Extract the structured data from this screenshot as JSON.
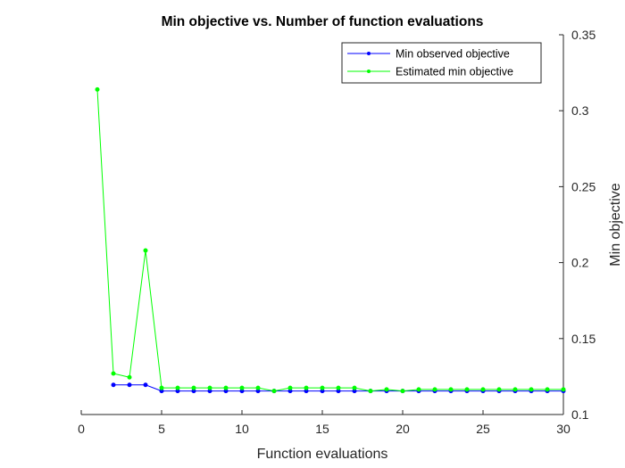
{
  "chart_data": {
    "type": "line",
    "title": "Min objective vs. Number of function evaluations",
    "xlabel": "Function evaluations",
    "ylabel": "Min objective",
    "xlim": [
      0,
      30
    ],
    "ylim": [
      0.1,
      0.35
    ],
    "xticks": [
      "0",
      "5",
      "10",
      "15",
      "20",
      "25",
      "30"
    ],
    "yticks": [
      "0.1",
      "0.15",
      "0.2",
      "0.25",
      "0.3",
      "0.35"
    ],
    "y_axis_location": "right",
    "grid": false,
    "legend_location": "top-right",
    "x": [
      1,
      2,
      3,
      4,
      5,
      6,
      7,
      8,
      9,
      10,
      11,
      12,
      13,
      14,
      15,
      16,
      17,
      18,
      19,
      20,
      21,
      22,
      23,
      24,
      25,
      26,
      27,
      28,
      29,
      30
    ],
    "series": [
      {
        "name": "Min observed objective",
        "color": "#0000ff",
        "values": [
          null,
          0.1195,
          0.1195,
          0.1195,
          0.1155,
          0.1155,
          0.1155,
          0.1155,
          0.1155,
          0.1155,
          0.1155,
          0.1155,
          0.1155,
          0.1155,
          0.1155,
          0.1155,
          0.1155,
          0.1155,
          0.1155,
          0.1155,
          0.1155,
          0.1155,
          0.1155,
          0.1155,
          0.1155,
          0.1155,
          0.1155,
          0.1155,
          0.1155,
          0.1155
        ]
      },
      {
        "name": "Estimated min objective",
        "color": "#00ff00",
        "values": [
          0.314,
          0.127,
          0.1245,
          0.208,
          0.1175,
          0.1175,
          0.1175,
          0.1175,
          0.1175,
          0.1175,
          0.1175,
          0.1155,
          0.1175,
          0.1175,
          0.1175,
          0.1175,
          0.1175,
          0.1155,
          0.1165,
          0.1155,
          0.1165,
          0.1165,
          0.1165,
          0.1165,
          0.1165,
          0.1165,
          0.1165,
          0.1165,
          0.1165,
          0.1165
        ]
      }
    ]
  }
}
